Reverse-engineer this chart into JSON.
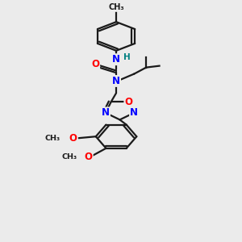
{
  "background_color": "#ebebeb",
  "bond_color": "#1a1a1a",
  "N_color": "#0000ff",
  "O_color": "#ff0000",
  "H_color": "#008080",
  "figsize": [
    3.0,
    3.0
  ],
  "dpi": 100,
  "xlim": [
    0,
    10
  ],
  "ylim": [
    0,
    15
  ]
}
